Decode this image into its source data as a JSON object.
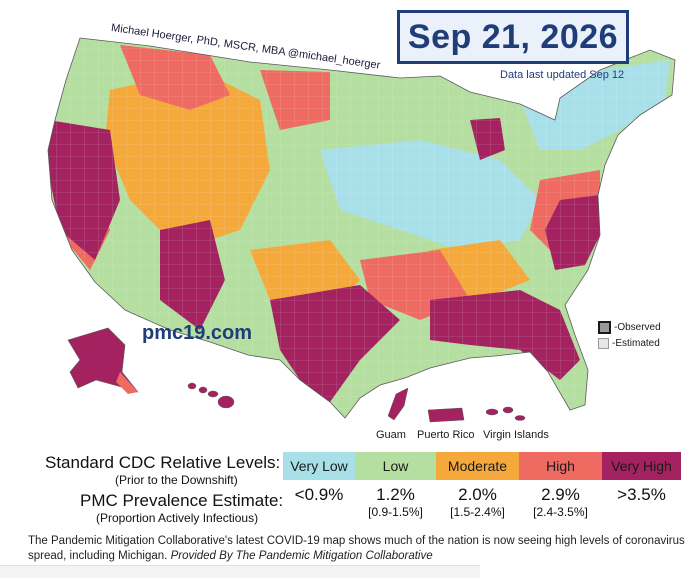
{
  "map": {
    "author_credit": "Michael Hoerger, PhD, MSCR, MBA  @michael_hoerger",
    "date": "Sep 21, 2026",
    "updated_note": "Data last updated Sep 12",
    "watermark": "pmc19.com",
    "observed_label": "-Observed",
    "estimated_label": "-Estimated",
    "territories": {
      "guam": "Guam",
      "puerto_rico": "Puerto Rico",
      "virgin_islands": "Virgin Islands"
    }
  },
  "legend": {
    "cdc_title": "Standard CDC Relative Levels:",
    "cdc_subtitle": "(Prior to the Downshift)",
    "pmc_title": "PMC Prevalence Estimate:",
    "pmc_subtitle": "(Proportion Actively Infectious)",
    "levels": [
      {
        "label": "Very Low",
        "color": "#a8e0ea",
        "estimate": "<0.9%",
        "range": ""
      },
      {
        "label": "Low",
        "color": "#b4dfa0",
        "estimate": "1.2%",
        "range": "[0.9-1.5%]"
      },
      {
        "label": "Moderate",
        "color": "#f6a93b",
        "estimate": "2.0%",
        "range": "[1.5-2.4%]"
      },
      {
        "label": "High",
        "color": "#ef6a60",
        "estimate": "2.9%",
        "range": "[2.4-3.5%]"
      },
      {
        "label": "Very High",
        "color": "#a3225f",
        "estimate": ">3.5%",
        "range": ""
      }
    ]
  },
  "caption": {
    "text": "The Pandemic Mitigation Collaborative's latest COVID-19 map shows much of the nation is now seeing high levels of coronavirus spread, including Michigan.",
    "credit": "Provided By The Pandemic Mitigation Collaborative"
  }
}
